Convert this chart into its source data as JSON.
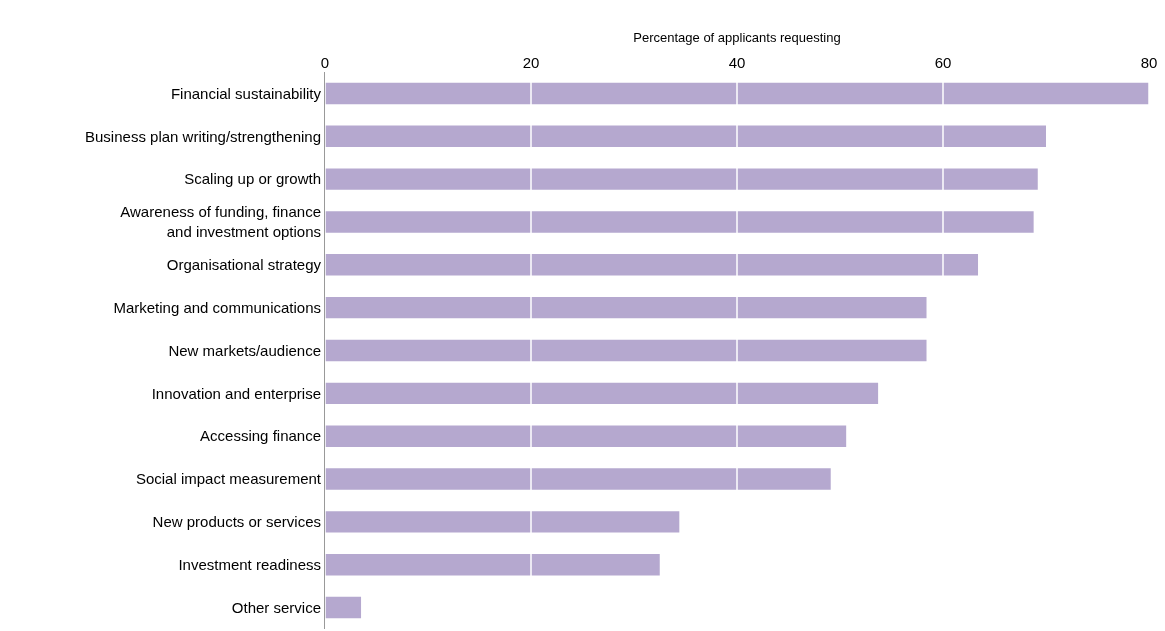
{
  "chart_data": {
    "type": "bar",
    "orientation": "horizontal",
    "xlabel": "Percentage of applicants requesting",
    "categories": [
      "Financial sustainability",
      "Business plan writing/strengthening",
      "Scaling up or growth",
      "Awareness of funding, finance\nand investment options",
      "Organisational strategy",
      "Marketing and communications",
      "New markets/audience",
      "Innovation and enterprise",
      "Accessing finance",
      "Social impact measurement",
      "New products or services",
      "Investment readiness",
      "Other service"
    ],
    "values": [
      80,
      70,
      69.2,
      68.8,
      63.4,
      58.4,
      58.4,
      53.7,
      50.6,
      49.1,
      34.4,
      32.5,
      3.5
    ],
    "color": "#b5a8cf",
    "xlim": [
      0,
      80
    ],
    "xticks": [
      0,
      20,
      40,
      60,
      80
    ],
    "grid": "x"
  }
}
